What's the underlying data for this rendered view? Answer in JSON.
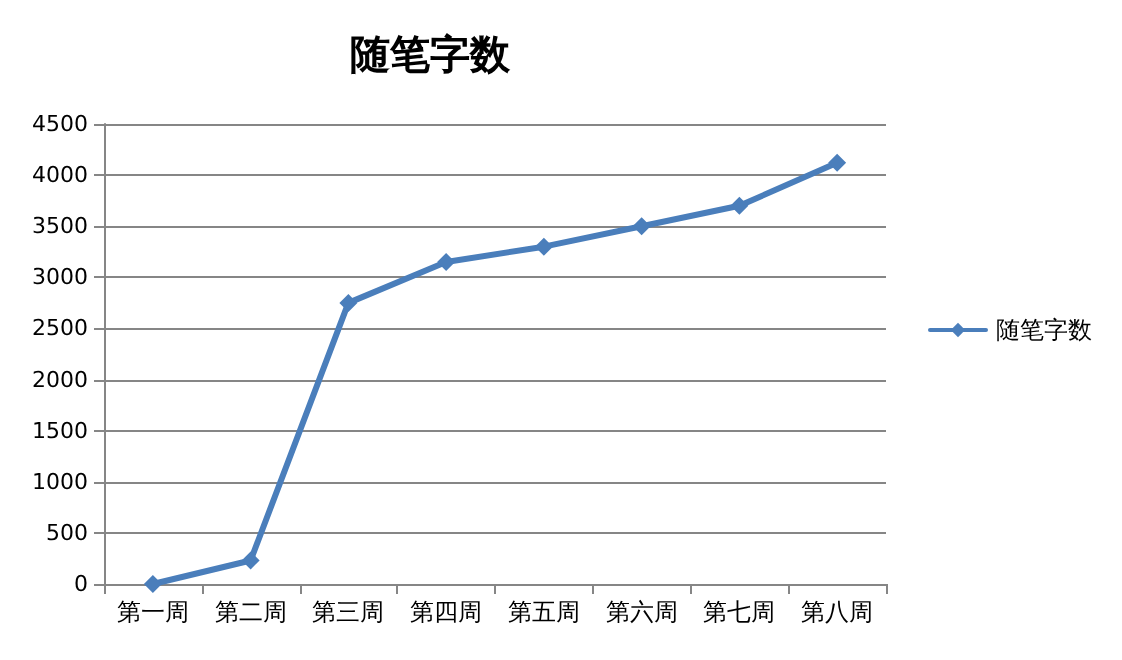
{
  "chart_data": {
    "type": "line",
    "title": "随笔字数",
    "categories": [
      "第一周",
      "第二周",
      "第三周",
      "第四周",
      "第五周",
      "第六周",
      "第七周",
      "第八周"
    ],
    "series": [
      {
        "name": "随笔字数",
        "color": "#4a7ebb",
        "values": [
          0,
          230,
          2750,
          3150,
          3300,
          3500,
          3700,
          4120
        ]
      }
    ],
    "ylim": [
      0,
      4500
    ],
    "yticks": [
      0,
      500,
      1000,
      1500,
      2000,
      2500,
      3000,
      3500,
      4000,
      4500
    ],
    "grid": "y",
    "legend": "right",
    "marker": "diamond",
    "line_style": "solid"
  }
}
